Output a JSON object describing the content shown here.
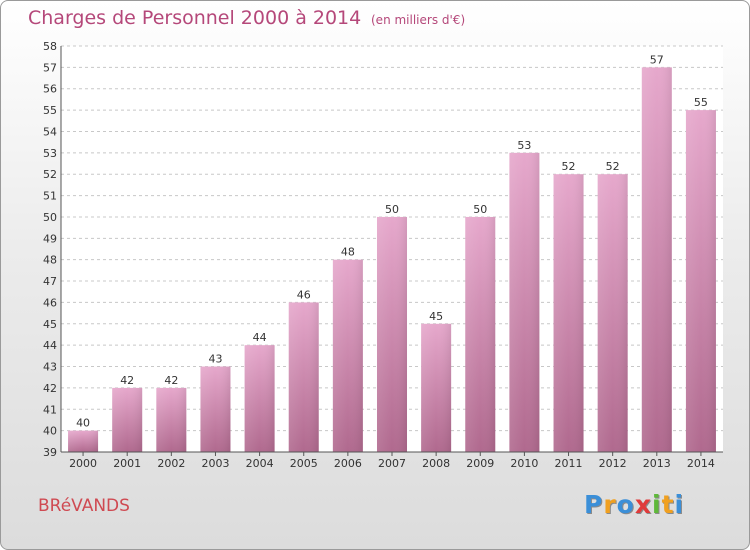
{
  "chart_data": {
    "type": "bar",
    "title": "Charges de Personnel 2000 à 2014",
    "subtitle": "(en milliers d'€)",
    "categories": [
      "2000",
      "2001",
      "2002",
      "2003",
      "2004",
      "2005",
      "2006",
      "2007",
      "2008",
      "2009",
      "2010",
      "2011",
      "2012",
      "2013",
      "2014"
    ],
    "values": [
      40,
      42,
      42,
      43,
      44,
      46,
      48,
      50,
      45,
      50,
      53,
      52,
      52,
      57,
      55
    ],
    "ylim": [
      39,
      58
    ],
    "yticks": [
      39,
      40,
      41,
      42,
      43,
      44,
      45,
      46,
      47,
      48,
      49,
      50,
      51,
      52,
      53,
      54,
      55,
      56,
      57,
      58
    ],
    "grid": true,
    "bar_color_top": "#e6a8cc",
    "bar_color_bottom": "#b0698e"
  },
  "commune": "BRéVANDS",
  "logo": {
    "letters": [
      "P",
      "r",
      "o",
      "x",
      "i",
      "t",
      "i"
    ],
    "colors": [
      "#3b8fd8",
      "#f0a020",
      "#3b8fd8",
      "#e03b3b",
      "#5fb83a",
      "#f0a020",
      "#3b8fd8"
    ]
  }
}
